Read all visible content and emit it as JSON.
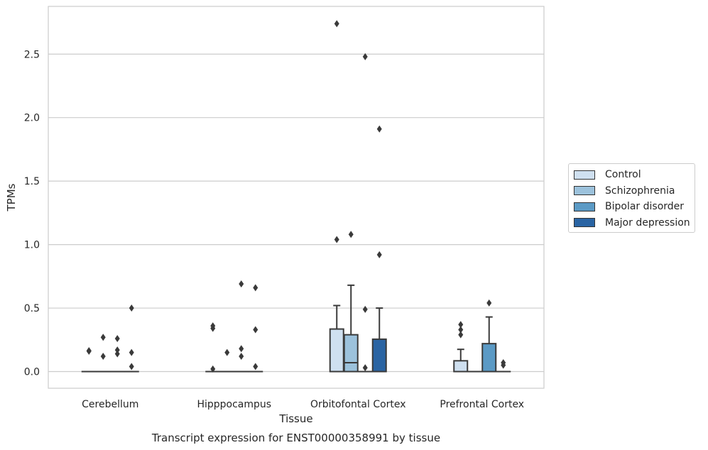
{
  "chart_data": {
    "type": "box",
    "title": "Transcript expression for ENST00000358991 by tissue",
    "xlabel": "Tissue",
    "ylabel": "TPMs",
    "ylim": [
      -0.135,
      2.9
    ],
    "yticks": [
      "0.0",
      "0.5",
      "1.0",
      "1.5",
      "2.0",
      "2.5"
    ],
    "yticks_values": [
      0,
      0.5,
      1.0,
      1.5,
      2.0,
      2.5
    ],
    "grid": "horizontal",
    "legend_position": "right",
    "categories": [
      "Cerebellum",
      "Hipppocampus",
      "Orbitofontal Cortex",
      "Prefrontal Cortex"
    ],
    "series": [
      {
        "name": "Control",
        "color": "#cfe0f0",
        "boxes": [
          {
            "q1": 0,
            "median": 0,
            "q3": 0,
            "whisker_low": 0,
            "whisker_high": 0,
            "outliers": [
              0.16,
              0.165
            ]
          },
          {
            "q1": 0,
            "median": 0,
            "q3": 0,
            "whisker_low": 0,
            "whisker_high": 0,
            "outliers": [
              0.02,
              0.34,
              0.36
            ]
          },
          {
            "q1": 0,
            "median": 0,
            "q3": 0.335,
            "whisker_low": 0,
            "whisker_high": 0.52,
            "outliers": [
              1.04,
              2.74
            ]
          },
          {
            "q1": 0,
            "median": 0,
            "q3": 0.085,
            "whisker_low": 0,
            "whisker_high": 0.175,
            "outliers": [
              0.29,
              0.33,
              0.37
            ]
          }
        ]
      },
      {
        "name": "Schizophrenia",
        "color": "#9cc2dc",
        "boxes": [
          {
            "q1": 0,
            "median": 0,
            "q3": 0,
            "whisker_low": 0,
            "whisker_high": 0,
            "outliers": [
              0.12,
              0.27
            ]
          },
          {
            "q1": 0,
            "median": 0,
            "q3": 0,
            "whisker_low": 0,
            "whisker_high": 0,
            "outliers": [
              0.15
            ]
          },
          {
            "q1": 0,
            "median": 0.07,
            "q3": 0.29,
            "whisker_low": 0,
            "whisker_high": 0.68,
            "outliers": [
              1.08
            ]
          },
          {
            "q1": 0,
            "median": 0,
            "q3": 0,
            "whisker_low": 0,
            "whisker_high": 0,
            "outliers": []
          }
        ]
      },
      {
        "name": "Bipolar disorder",
        "color": "#5b9ac5",
        "boxes": [
          {
            "q1": 0,
            "median": 0,
            "q3": 0,
            "whisker_low": 0,
            "whisker_high": 0,
            "outliers": [
              0.14,
              0.17,
              0.26
            ]
          },
          {
            "q1": 0,
            "median": 0,
            "q3": 0,
            "whisker_low": 0,
            "whisker_high": 0,
            "outliers": [
              0.12,
              0.18,
              0.69
            ]
          },
          {
            "q1": 0,
            "median": 0,
            "q3": 0,
            "whisker_low": 0,
            "whisker_high": 0,
            "outliers": [
              0.03,
              0.49,
              2.48
            ]
          },
          {
            "q1": 0,
            "median": 0,
            "q3": 0.22,
            "whisker_low": 0,
            "whisker_high": 0.43,
            "outliers": [
              0.54
            ]
          }
        ]
      },
      {
        "name": "Major depression",
        "color": "#2a64a3",
        "boxes": [
          {
            "q1": 0,
            "median": 0,
            "q3": 0,
            "whisker_low": 0,
            "whisker_high": 0,
            "outliers": [
              0.04,
              0.15,
              0.5
            ]
          },
          {
            "q1": 0,
            "median": 0,
            "q3": 0,
            "whisker_low": 0,
            "whisker_high": 0,
            "outliers": [
              0.04,
              0.33,
              0.66
            ]
          },
          {
            "q1": 0,
            "median": 0,
            "q3": 0.255,
            "whisker_low": 0,
            "whisker_high": 0.5,
            "outliers": [
              0.92,
              1.91
            ]
          },
          {
            "q1": 0,
            "median": 0,
            "q3": 0,
            "whisker_low": 0,
            "whisker_high": 0,
            "outliers": [
              0.05,
              0.07
            ]
          }
        ]
      }
    ]
  }
}
